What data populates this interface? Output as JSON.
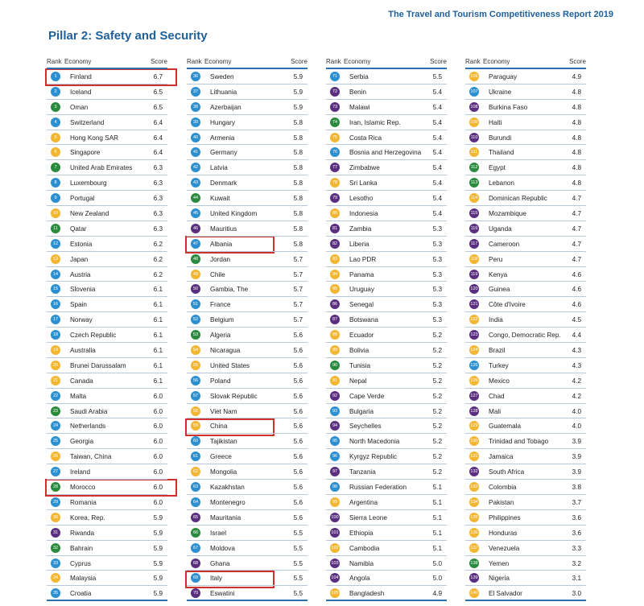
{
  "header": {
    "report_title": "The Travel and Tourism Competitiveness Report 2019",
    "page_title": "Pillar 2: Safety and Security"
  },
  "columns_header": {
    "rank": "Rank",
    "economy": "Economy",
    "score": "Score"
  },
  "colors": {
    "accent_blue": "#1f5f9a",
    "highlight_red": "#d0302c",
    "badge_blue": "#2c8fd0",
    "badge_green": "#2a8a3e",
    "badge_yellow": "#f2b632",
    "badge_purple": "#5a2f7f"
  },
  "rows": [
    {
      "rank": "1",
      "economy": "Finland",
      "score": "6.7",
      "color": "#2c8fd0"
    },
    {
      "rank": "2",
      "economy": "Iceland",
      "score": "6.5",
      "color": "#2c8fd0"
    },
    {
      "rank": "3",
      "economy": "Oman",
      "score": "6.5",
      "color": "#2a8a3e"
    },
    {
      "rank": "4",
      "economy": "Switzerland",
      "score": "6.4",
      "color": "#2c8fd0"
    },
    {
      "rank": "5",
      "economy": "Hong Kong SAR",
      "score": "6.4",
      "color": "#f2b632"
    },
    {
      "rank": "6",
      "economy": "Singapore",
      "score": "6.4",
      "color": "#f2b632"
    },
    {
      "rank": "7",
      "economy": "United Arab Emirates",
      "score": "6.3",
      "color": "#2a8a3e"
    },
    {
      "rank": "8",
      "economy": "Luxembourg",
      "score": "6.3",
      "color": "#2c8fd0"
    },
    {
      "rank": "9",
      "economy": "Portugal",
      "score": "6.3",
      "color": "#2c8fd0"
    },
    {
      "rank": "10",
      "economy": "New Zealand",
      "score": "6.3",
      "color": "#f2b632"
    },
    {
      "rank": "11",
      "economy": "Qatar",
      "score": "6.3",
      "color": "#2a8a3e"
    },
    {
      "rank": "12",
      "economy": "Estonia",
      "score": "6.2",
      "color": "#2c8fd0"
    },
    {
      "rank": "13",
      "economy": "Japan",
      "score": "6.2",
      "color": "#f2b632"
    },
    {
      "rank": "14",
      "economy": "Austria",
      "score": "6.2",
      "color": "#2c8fd0"
    },
    {
      "rank": "15",
      "economy": "Slovenia",
      "score": "6.1",
      "color": "#2c8fd0"
    },
    {
      "rank": "16",
      "economy": "Spain",
      "score": "6.1",
      "color": "#2c8fd0"
    },
    {
      "rank": "17",
      "economy": "Norway",
      "score": "6.1",
      "color": "#2c8fd0"
    },
    {
      "rank": "18",
      "economy": "Czech Republic",
      "score": "6.1",
      "color": "#2c8fd0"
    },
    {
      "rank": "19",
      "economy": "Australia",
      "score": "6.1",
      "color": "#f2b632"
    },
    {
      "rank": "20",
      "economy": "Brunei Darussalam",
      "score": "6.1",
      "color": "#f2b632"
    },
    {
      "rank": "21",
      "economy": "Canada",
      "score": "6.1",
      "color": "#f2b632"
    },
    {
      "rank": "22",
      "economy": "Malta",
      "score": "6.0",
      "color": "#2c8fd0"
    },
    {
      "rank": "23",
      "economy": "Saudi Arabia",
      "score": "6.0",
      "color": "#2a8a3e"
    },
    {
      "rank": "24",
      "economy": "Netherlands",
      "score": "6.0",
      "color": "#2c8fd0"
    },
    {
      "rank": "25",
      "economy": "Georgia",
      "score": "6.0",
      "color": "#2c8fd0"
    },
    {
      "rank": "26",
      "economy": "Taiwan, China",
      "score": "6.0",
      "color": "#f2b632"
    },
    {
      "rank": "27",
      "economy": "Ireland",
      "score": "6.0",
      "color": "#2c8fd0"
    },
    {
      "rank": "28",
      "economy": "Morocco",
      "score": "6.0",
      "color": "#2a8a3e"
    },
    {
      "rank": "29",
      "economy": "Romania",
      "score": "6.0",
      "color": "#2c8fd0"
    },
    {
      "rank": "30",
      "economy": "Korea, Rep.",
      "score": "5.9",
      "color": "#f2b632"
    },
    {
      "rank": "31",
      "economy": "Rwanda",
      "score": "5.9",
      "color": "#5a2f7f"
    },
    {
      "rank": "32",
      "economy": "Bahrain",
      "score": "5.9",
      "color": "#2a8a3e"
    },
    {
      "rank": "33",
      "economy": "Cyprus",
      "score": "5.9",
      "color": "#2c8fd0"
    },
    {
      "rank": "34",
      "economy": "Malaysia",
      "score": "5.9",
      "color": "#f2b632"
    },
    {
      "rank": "35",
      "economy": "Croatia",
      "score": "5.9",
      "color": "#2c8fd0"
    },
    {
      "rank": "36",
      "economy": "Sweden",
      "score": "5.9",
      "color": "#2c8fd0"
    },
    {
      "rank": "37",
      "economy": "Lithuania",
      "score": "5.9",
      "color": "#2c8fd0"
    },
    {
      "rank": "38",
      "economy": "Azerbaijan",
      "score": "5.9",
      "color": "#2c8fd0"
    },
    {
      "rank": "39",
      "economy": "Hungary",
      "score": "5.8",
      "color": "#2c8fd0"
    },
    {
      "rank": "40",
      "economy": "Armenia",
      "score": "5.8",
      "color": "#2c8fd0"
    },
    {
      "rank": "41",
      "economy": "Germany",
      "score": "5.8",
      "color": "#2c8fd0"
    },
    {
      "rank": "42",
      "economy": "Latvia",
      "score": "5.8",
      "color": "#2c8fd0"
    },
    {
      "rank": "43",
      "economy": "Denmark",
      "score": "5.8",
      "color": "#2c8fd0"
    },
    {
      "rank": "44",
      "economy": "Kuwait",
      "score": "5.8",
      "color": "#2a8a3e"
    },
    {
      "rank": "45",
      "economy": "United Kingdom",
      "score": "5.8",
      "color": "#2c8fd0"
    },
    {
      "rank": "46",
      "economy": "Mauritius",
      "score": "5.8",
      "color": "#5a2f7f"
    },
    {
      "rank": "47",
      "economy": "Albania",
      "score": "5.8",
      "color": "#2c8fd0"
    },
    {
      "rank": "48",
      "economy": "Jordan",
      "score": "5.7",
      "color": "#2a8a3e"
    },
    {
      "rank": "49",
      "economy": "Chile",
      "score": "5.7",
      "color": "#f2b632"
    },
    {
      "rank": "50",
      "economy": "Gambia, The",
      "score": "5.7",
      "color": "#5a2f7f"
    },
    {
      "rank": "51",
      "economy": "France",
      "score": "5.7",
      "color": "#2c8fd0"
    },
    {
      "rank": "52",
      "economy": "Belgium",
      "score": "5.7",
      "color": "#2c8fd0"
    },
    {
      "rank": "53",
      "economy": "Algeria",
      "score": "5.6",
      "color": "#2a8a3e"
    },
    {
      "rank": "54",
      "economy": "Nicaragua",
      "score": "5.6",
      "color": "#f2b632"
    },
    {
      "rank": "55",
      "economy": "United States",
      "score": "5.6",
      "color": "#f2b632"
    },
    {
      "rank": "56",
      "economy": "Poland",
      "score": "5.6",
      "color": "#2c8fd0"
    },
    {
      "rank": "57",
      "economy": "Slovak Republic",
      "score": "5.6",
      "color": "#2c8fd0"
    },
    {
      "rank": "58",
      "economy": "Viet Nam",
      "score": "5.6",
      "color": "#f2b632"
    },
    {
      "rank": "59",
      "economy": "China",
      "score": "5.6",
      "color": "#f2b632"
    },
    {
      "rank": "60",
      "economy": "Tajikistan",
      "score": "5.6",
      "color": "#2c8fd0"
    },
    {
      "rank": "61",
      "economy": "Greece",
      "score": "5.6",
      "color": "#2c8fd0"
    },
    {
      "rank": "62",
      "economy": "Mongolia",
      "score": "5.6",
      "color": "#f2b632"
    },
    {
      "rank": "63",
      "economy": "Kazakhstan",
      "score": "5.6",
      "color": "#2c8fd0"
    },
    {
      "rank": "64",
      "economy": "Montenegro",
      "score": "5.6",
      "color": "#2c8fd0"
    },
    {
      "rank": "65",
      "economy": "Mauritania",
      "score": "5.6",
      "color": "#5a2f7f"
    },
    {
      "rank": "66",
      "economy": "Israel",
      "score": "5.5",
      "color": "#2a8a3e"
    },
    {
      "rank": "67",
      "economy": "Moldova",
      "score": "5.5",
      "color": "#2c8fd0"
    },
    {
      "rank": "68",
      "economy": "Ghana",
      "score": "5.5",
      "color": "#5a2f7f"
    },
    {
      "rank": "69",
      "economy": "Italy",
      "score": "5.5",
      "color": "#2c8fd0"
    },
    {
      "rank": "70",
      "economy": "Eswatini",
      "score": "5.5",
      "color": "#5a2f7f"
    },
    {
      "rank": "71",
      "economy": "Serbia",
      "score": "5.5",
      "color": "#2c8fd0"
    },
    {
      "rank": "72",
      "economy": "Benin",
      "score": "5.4",
      "color": "#5a2f7f"
    },
    {
      "rank": "73",
      "economy": "Malawi",
      "score": "5.4",
      "color": "#5a2f7f"
    },
    {
      "rank": "74",
      "economy": "Iran, Islamic Rep.",
      "score": "5.4",
      "color": "#2a8a3e"
    },
    {
      "rank": "75",
      "economy": "Costa Rica",
      "score": "5.4",
      "color": "#f2b632"
    },
    {
      "rank": "76",
      "economy": "Bosnia and Herzegovina",
      "score": "5.4",
      "color": "#2c8fd0"
    },
    {
      "rank": "77",
      "economy": "Zimbabwe",
      "score": "5.4",
      "color": "#5a2f7f"
    },
    {
      "rank": "78",
      "economy": "Sri Lanka",
      "score": "5.4",
      "color": "#f2b632"
    },
    {
      "rank": "79",
      "economy": "Lesotho",
      "score": "5.4",
      "color": "#5a2f7f"
    },
    {
      "rank": "80",
      "economy": "Indonesia",
      "score": "5.4",
      "color": "#f2b632"
    },
    {
      "rank": "81",
      "economy": "Zambia",
      "score": "5.3",
      "color": "#5a2f7f"
    },
    {
      "rank": "82",
      "economy": "Liberia",
      "score": "5.3",
      "color": "#5a2f7f"
    },
    {
      "rank": "83",
      "economy": "Lao PDR",
      "score": "5.3",
      "color": "#f2b632"
    },
    {
      "rank": "84",
      "economy": "Panama",
      "score": "5.3",
      "color": "#f2b632"
    },
    {
      "rank": "85",
      "economy": "Uruguay",
      "score": "5.3",
      "color": "#f2b632"
    },
    {
      "rank": "86",
      "economy": "Senegal",
      "score": "5.3",
      "color": "#5a2f7f"
    },
    {
      "rank": "87",
      "economy": "Botswana",
      "score": "5.3",
      "color": "#5a2f7f"
    },
    {
      "rank": "88",
      "economy": "Ecuador",
      "score": "5.2",
      "color": "#f2b632"
    },
    {
      "rank": "89",
      "economy": "Bolivia",
      "score": "5.2",
      "color": "#f2b632"
    },
    {
      "rank": "90",
      "economy": "Tunisia",
      "score": "5.2",
      "color": "#2a8a3e"
    },
    {
      "rank": "91",
      "economy": "Nepal",
      "score": "5.2",
      "color": "#f2b632"
    },
    {
      "rank": "92",
      "economy": "Cape Verde",
      "score": "5.2",
      "color": "#5a2f7f"
    },
    {
      "rank": "93",
      "economy": "Bulgaria",
      "score": "5.2",
      "color": "#2c8fd0"
    },
    {
      "rank": "94",
      "economy": "Seychelles",
      "score": "5.2",
      "color": "#5a2f7f"
    },
    {
      "rank": "95",
      "economy": "North Macedonia",
      "score": "5.2",
      "color": "#2c8fd0"
    },
    {
      "rank": "96",
      "economy": "Kyrgyz Republic",
      "score": "5.2",
      "color": "#2c8fd0"
    },
    {
      "rank": "97",
      "economy": "Tanzania",
      "score": "5.2",
      "color": "#5a2f7f"
    },
    {
      "rank": "98",
      "economy": "Russian Federation",
      "score": "5.1",
      "color": "#2c8fd0"
    },
    {
      "rank": "99",
      "economy": "Argentina",
      "score": "5.1",
      "color": "#f2b632"
    },
    {
      "rank": "100",
      "economy": "Sierra Leone",
      "score": "5.1",
      "color": "#5a2f7f"
    },
    {
      "rank": "101",
      "economy": "Ethiopia",
      "score": "5.1",
      "color": "#5a2f7f"
    },
    {
      "rank": "102",
      "economy": "Cambodia",
      "score": "5.1",
      "color": "#f2b632"
    },
    {
      "rank": "103",
      "economy": "Namibia",
      "score": "5.0",
      "color": "#5a2f7f"
    },
    {
      "rank": "104",
      "economy": "Angola",
      "score": "5.0",
      "color": "#5a2f7f"
    },
    {
      "rank": "105",
      "economy": "Bangladesh",
      "score": "4.9",
      "color": "#f2b632"
    },
    {
      "rank": "106",
      "economy": "Paraguay",
      "score": "4.9",
      "color": "#f2b632"
    },
    {
      "rank": "107",
      "economy": "Ukraine",
      "score": "4.8",
      "color": "#2c8fd0"
    },
    {
      "rank": "108",
      "economy": "Burkina Faso",
      "score": "4.8",
      "color": "#5a2f7f"
    },
    {
      "rank": "109",
      "economy": "Haiti",
      "score": "4.8",
      "color": "#f2b632"
    },
    {
      "rank": "110",
      "economy": "Burundi",
      "score": "4.8",
      "color": "#5a2f7f"
    },
    {
      "rank": "111",
      "economy": "Thailand",
      "score": "4.8",
      "color": "#f2b632"
    },
    {
      "rank": "112",
      "economy": "Egypt",
      "score": "4.8",
      "color": "#2a8a3e"
    },
    {
      "rank": "113",
      "economy": "Lebanon",
      "score": "4.8",
      "color": "#2a8a3e"
    },
    {
      "rank": "114",
      "economy": "Dominican Republic",
      "score": "4.7",
      "color": "#f2b632"
    },
    {
      "rank": "115",
      "economy": "Mozambique",
      "score": "4.7",
      "color": "#5a2f7f"
    },
    {
      "rank": "116",
      "economy": "Uganda",
      "score": "4.7",
      "color": "#5a2f7f"
    },
    {
      "rank": "117",
      "economy": "Cameroon",
      "score": "4.7",
      "color": "#5a2f7f"
    },
    {
      "rank": "118",
      "economy": "Peru",
      "score": "4.7",
      "color": "#f2b632"
    },
    {
      "rank": "119",
      "economy": "Kenya",
      "score": "4.6",
      "color": "#5a2f7f"
    },
    {
      "rank": "120",
      "economy": "Guinea",
      "score": "4.6",
      "color": "#5a2f7f"
    },
    {
      "rank": "121",
      "economy": "Côte d'Ivoire",
      "score": "4.6",
      "color": "#5a2f7f"
    },
    {
      "rank": "122",
      "economy": "India",
      "score": "4.5",
      "color": "#f2b632"
    },
    {
      "rank": "123",
      "economy": "Congo, Democratic Rep.",
      "score": "4.4",
      "color": "#5a2f7f"
    },
    {
      "rank": "124",
      "economy": "Brazil",
      "score": "4.3",
      "color": "#f2b632"
    },
    {
      "rank": "125",
      "economy": "Turkey",
      "score": "4.3",
      "color": "#2c8fd0"
    },
    {
      "rank": "126",
      "economy": "Mexico",
      "score": "4.2",
      "color": "#f2b632"
    },
    {
      "rank": "127",
      "economy": "Chad",
      "score": "4.2",
      "color": "#5a2f7f"
    },
    {
      "rank": "128",
      "economy": "Mali",
      "score": "4.0",
      "color": "#5a2f7f"
    },
    {
      "rank": "129",
      "economy": "Guatemala",
      "score": "4.0",
      "color": "#f2b632"
    },
    {
      "rank": "130",
      "economy": "Trinidad and Tobago",
      "score": "3.9",
      "color": "#f2b632"
    },
    {
      "rank": "131",
      "economy": "Jamaica",
      "score": "3.9",
      "color": "#f2b632"
    },
    {
      "rank": "132",
      "economy": "South Africa",
      "score": "3.9",
      "color": "#5a2f7f"
    },
    {
      "rank": "133",
      "economy": "Colombia",
      "score": "3.8",
      "color": "#f2b632"
    },
    {
      "rank": "134",
      "economy": "Pakistan",
      "score": "3.7",
      "color": "#f2b632"
    },
    {
      "rank": "135",
      "economy": "Philippines",
      "score": "3.6",
      "color": "#f2b632"
    },
    {
      "rank": "136",
      "economy": "Honduras",
      "score": "3.6",
      "color": "#f2b632"
    },
    {
      "rank": "137",
      "economy": "Venezuela",
      "score": "3.3",
      "color": "#f2b632"
    },
    {
      "rank": "138",
      "economy": "Yemen",
      "score": "3.2",
      "color": "#2a8a3e"
    },
    {
      "rank": "139",
      "economy": "Nigeria",
      "score": "3.1",
      "color": "#5a2f7f"
    },
    {
      "rank": "140",
      "economy": "El Salvador",
      "score": "3.0",
      "color": "#f2b632"
    }
  ],
  "highlighted_ranks": [
    "1",
    "28",
    "47",
    "59",
    "69"
  ]
}
